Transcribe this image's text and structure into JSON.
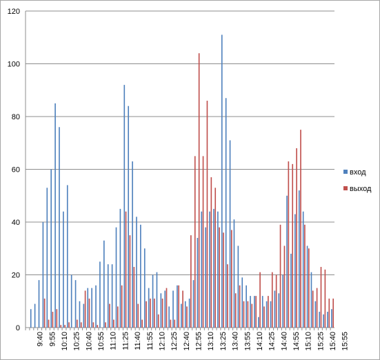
{
  "chart_data": {
    "type": "bar",
    "title": "",
    "xlabel": "",
    "ylabel": "",
    "ylim": [
      0,
      120
    ],
    "yticks": [
      0,
      20,
      40,
      60,
      80,
      100,
      120
    ],
    "grid": true,
    "legend_placement": "right",
    "x_tick_labels": [
      "9:40",
      "9:55",
      "10:10",
      "10:25",
      "10:40",
      "10:55",
      "11:10",
      "11:25",
      "11:40",
      "11:55",
      "12:10",
      "12:25",
      "12:40",
      "12:55",
      "13:10",
      "13:25",
      "13:40",
      "13:55",
      "14:10",
      "14:25",
      "14:40",
      "14:55",
      "15:10",
      "15:25",
      "15:40",
      "15:55"
    ],
    "x_tick_every": 3,
    "series": [
      {
        "name": "вход",
        "color": "#4f81bd",
        "values": [
          0,
          7,
          9,
          18,
          40,
          53,
          60,
          85,
          76,
          44,
          54,
          20,
          18,
          10,
          9,
          15,
          15,
          16,
          25,
          33,
          24,
          24,
          38,
          45,
          92,
          84,
          63,
          42,
          39,
          30,
          15,
          20,
          21,
          13,
          14,
          8,
          14,
          16,
          9,
          10,
          11,
          18,
          34,
          44,
          38,
          44,
          45,
          44,
          111,
          87,
          71,
          41,
          31,
          19,
          16,
          12,
          12,
          4,
          12,
          10,
          10,
          14,
          13,
          20,
          50,
          28,
          43,
          52,
          44,
          31,
          21,
          10,
          6,
          5,
          6,
          7
        ]
      },
      {
        "name": "выход",
        "color": "#c0504d",
        "values": [
          0,
          0,
          0,
          0,
          11,
          3,
          6,
          7,
          1,
          1,
          2,
          0,
          3,
          2,
          14,
          11,
          2,
          1,
          0,
          2,
          9,
          3,
          8,
          16,
          44,
          35,
          23,
          9,
          3,
          10,
          11,
          11,
          5,
          11,
          15,
          3,
          3,
          16,
          14,
          8,
          35,
          65,
          104,
          65,
          86,
          57,
          53,
          38,
          36,
          24,
          37,
          13,
          16,
          10,
          10,
          9,
          12,
          21,
          8,
          12,
          21,
          20,
          39,
          31,
          63,
          62,
          68,
          75,
          39,
          30,
          14,
          15,
          23,
          22,
          11,
          11
        ]
      }
    ]
  }
}
